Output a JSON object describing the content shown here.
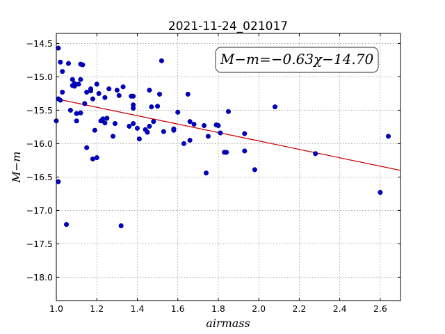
{
  "chart_data": {
    "type": "scatter",
    "title": "2021-11-24_021017",
    "xlabel": "airmass",
    "ylabel": "M−m",
    "xlim": [
      1.0,
      2.7
    ],
    "ylim": [
      -18.35,
      -14.35
    ],
    "x_ticks": [
      1.0,
      1.2,
      1.4,
      1.6,
      1.8,
      2.0,
      2.2,
      2.4,
      2.6
    ],
    "x_tick_labels": [
      "1.0",
      "1.2",
      "1.4",
      "1.6",
      "1.8",
      "2.0",
      "2.2",
      "2.4",
      "2.6"
    ],
    "y_ticks": [
      -14.5,
      -15.0,
      -15.5,
      -16.0,
      -16.5,
      -17.0,
      -17.5,
      -18.0
    ],
    "y_tick_labels": [
      "−14.5",
      "−15.0",
      "−15.5",
      "−16.0",
      "−16.5",
      "−17.0",
      "−17.5",
      "−18.0"
    ],
    "grid": true,
    "annotation": "M−m=−0.63χ−14.70",
    "fit": {
      "slope": -0.63,
      "intercept": -14.7,
      "color": "#cc0000"
    },
    "point_color": "#0000c8",
    "points": [
      [
        1.0,
        -15.66
      ],
      [
        1.01,
        -15.33
      ],
      [
        1.01,
        -14.57
      ],
      [
        1.01,
        -16.57
      ],
      [
        1.02,
        -14.78
      ],
      [
        1.02,
        -15.35
      ],
      [
        1.03,
        -14.92
      ],
      [
        1.03,
        -15.23
      ],
      [
        1.05,
        -17.21
      ],
      [
        1.06,
        -14.8
      ],
      [
        1.07,
        -15.5
      ],
      [
        1.08,
        -15.04
      ],
      [
        1.08,
        -15.13
      ],
      [
        1.09,
        -15.1
      ],
      [
        1.09,
        -15.14
      ],
      [
        1.1,
        -15.55
      ],
      [
        1.1,
        -15.66
      ],
      [
        1.11,
        -15.11
      ],
      [
        1.12,
        -15.04
      ],
      [
        1.12,
        -14.81
      ],
      [
        1.12,
        -15.54
      ],
      [
        1.13,
        -14.82
      ],
      [
        1.14,
        -15.4
      ],
      [
        1.15,
        -15.23
      ],
      [
        1.15,
        -16.06
      ],
      [
        1.17,
        -15.21
      ],
      [
        1.17,
        -15.18
      ],
      [
        1.18,
        -16.23
      ],
      [
        1.18,
        -15.33
      ],
      [
        1.19,
        -15.8
      ],
      [
        1.2,
        -15.11
      ],
      [
        1.2,
        -16.21
      ],
      [
        1.21,
        -15.25
      ],
      [
        1.22,
        -15.66
      ],
      [
        1.23,
        -15.63
      ],
      [
        1.24,
        -15.31
      ],
      [
        1.24,
        -15.69
      ],
      [
        1.25,
        -15.62
      ],
      [
        1.26,
        -15.18
      ],
      [
        1.28,
        -15.89
      ],
      [
        1.29,
        -15.7
      ],
      [
        1.3,
        -15.2
      ],
      [
        1.31,
        -15.28
      ],
      [
        1.32,
        -17.23
      ],
      [
        1.33,
        -15.15
      ],
      [
        1.36,
        -15.74
      ],
      [
        1.37,
        -15.29
      ],
      [
        1.38,
        -15.29
      ],
      [
        1.38,
        -15.47
      ],
      [
        1.38,
        -15.42
      ],
      [
        1.38,
        -15.7
      ],
      [
        1.4,
        -15.77
      ],
      [
        1.41,
        -15.93
      ],
      [
        1.44,
        -15.79
      ],
      [
        1.45,
        -15.83
      ],
      [
        1.46,
        -15.74
      ],
      [
        1.46,
        -15.2
      ],
      [
        1.47,
        -15.45
      ],
      [
        1.48,
        -15.67
      ],
      [
        1.5,
        -15.44
      ],
      [
        1.51,
        -15.26
      ],
      [
        1.52,
        -14.76
      ],
      [
        1.53,
        -15.82
      ],
      [
        1.58,
        -15.8
      ],
      [
        1.58,
        -15.78
      ],
      [
        1.6,
        -15.53
      ],
      [
        1.63,
        -16.0
      ],
      [
        1.65,
        -15.26
      ],
      [
        1.66,
        -15.67
      ],
      [
        1.66,
        -15.95
      ],
      [
        1.68,
        -15.71
      ],
      [
        1.73,
        -15.73
      ],
      [
        1.74,
        -16.44
      ],
      [
        1.75,
        -15.89
      ],
      [
        1.79,
        -15.72
      ],
      [
        1.8,
        -15.73
      ],
      [
        1.81,
        -15.84
      ],
      [
        1.83,
        -16.13
      ],
      [
        1.84,
        -16.13
      ],
      [
        1.85,
        -15.52
      ],
      [
        1.93,
        -15.85
      ],
      [
        1.93,
        -16.11
      ],
      [
        1.98,
        -16.39
      ],
      [
        2.08,
        -15.45
      ],
      [
        2.28,
        -16.15
      ],
      [
        2.6,
        -16.73
      ],
      [
        2.64,
        -15.89
      ]
    ]
  }
}
